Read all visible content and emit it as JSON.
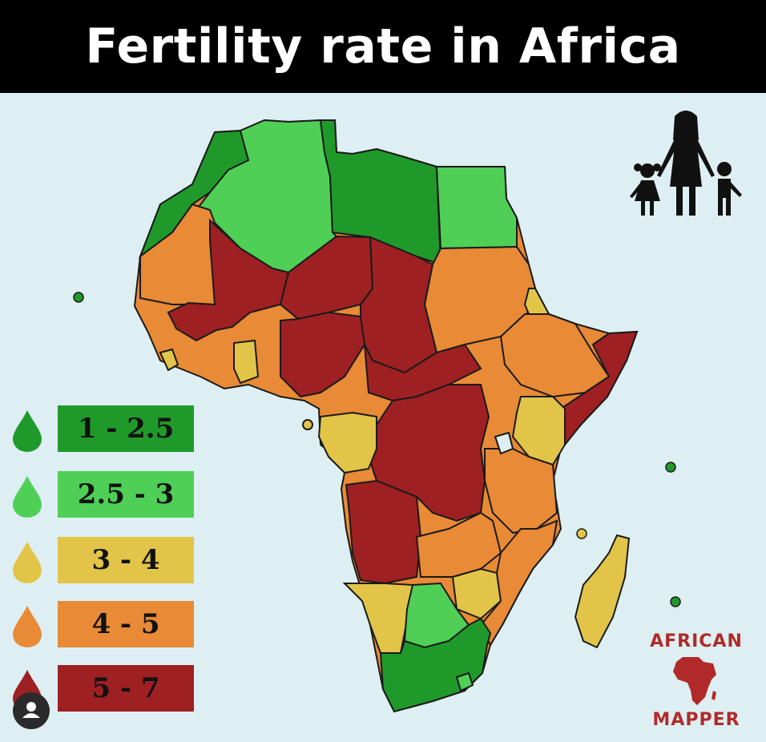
{
  "title": "Fertility rate in Africa",
  "colors": {
    "very_low": "#1f9a2a",
    "low": "#4fcf56",
    "mid": "#e2c548",
    "high": "#e88a36",
    "very_high": "#9e2023",
    "sea": "#ddeff2",
    "brand": "#b12a2a"
  },
  "legend": [
    {
      "label": "1 - 2.5",
      "color": "#1f9a2a"
    },
    {
      "label": "2.5 - 3",
      "color": "#4fcf56"
    },
    {
      "label": "3 - 4",
      "color": "#e2c548"
    },
    {
      "label": "4 - 5",
      "color": "#e88a36"
    },
    {
      "label": "5 - 7",
      "color": "#9e2023"
    }
  ],
  "brand": {
    "top": "AFRICAN",
    "bottom": "MAPPER"
  },
  "icons": {
    "family": "family-icon",
    "profile": "user-avatar-icon",
    "drop": "drop-icon"
  }
}
